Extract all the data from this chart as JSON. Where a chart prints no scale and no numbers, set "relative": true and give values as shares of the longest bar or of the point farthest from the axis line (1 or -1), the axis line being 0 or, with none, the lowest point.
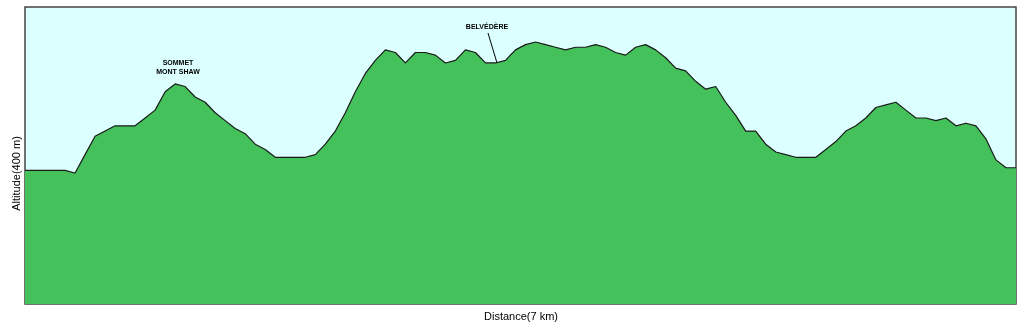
{
  "chart_data": {
    "type": "area",
    "relative": true,
    "xlabel": "Distance(7 km)",
    "ylabel": "Altitude(400 m)",
    "categories": [
      null,
      null,
      null,
      null,
      null,
      null,
      null,
      null,
      null,
      null,
      null,
      null,
      null,
      null,
      null,
      null,
      null,
      null,
      null,
      null,
      null,
      null,
      null,
      null,
      null,
      null,
      null,
      null,
      null,
      null,
      null,
      null,
      null,
      null,
      null,
      null,
      null,
      null,
      null,
      null,
      null,
      null,
      null,
      null,
      null,
      null,
      null,
      null,
      null,
      null,
      null,
      null,
      null,
      null,
      null,
      null,
      null,
      null,
      null,
      null,
      null,
      null,
      null,
      null,
      null,
      null,
      null,
      null,
      null,
      null,
      null,
      null,
      null,
      null,
      null,
      null,
      null,
      null,
      null,
      null,
      null,
      null,
      null,
      null,
      null,
      null,
      null,
      null,
      null,
      null,
      null,
      null,
      null,
      null,
      null,
      null,
      null,
      null,
      null,
      null
    ],
    "series": [
      {
        "color": "#44c15a",
        "values": [
          0.51,
          0.51,
          0.51,
          0.51,
          0.51,
          0.5,
          0.57,
          0.64,
          0.66,
          0.68,
          0.68,
          0.68,
          0.71,
          0.74,
          0.81,
          0.84,
          0.83,
          0.79,
          0.77,
          0.73,
          0.7,
          0.67,
          0.65,
          0.61,
          0.59,
          0.56,
          0.56,
          0.56,
          0.56,
          0.57,
          0.61,
          0.66,
          0.73,
          0.81,
          0.88,
          0.93,
          0.97,
          0.96,
          0.92,
          0.96,
          0.96,
          0.95,
          0.92,
          0.93,
          0.97,
          0.96,
          0.92,
          0.92,
          0.93,
          0.97,
          0.99,
          1.0,
          0.99,
          0.98,
          0.97,
          0.98,
          0.98,
          0.99,
          0.98,
          0.96,
          0.95,
          0.98,
          0.99,
          0.97,
          0.94,
          0.9,
          0.89,
          0.85,
          0.82,
          0.83,
          0.77,
          0.72,
          0.66,
          0.66,
          0.61,
          0.58,
          0.57,
          0.56,
          0.56,
          0.56,
          0.59,
          0.62,
          0.66,
          0.68,
          0.71,
          0.75,
          0.76,
          0.77,
          0.74,
          0.71,
          0.71,
          0.7,
          0.71,
          0.68,
          0.69,
          0.68,
          0.63,
          0.55,
          0.52,
          0.52
        ]
      }
    ],
    "annotations": [
      "SOMMET\nMONT SHAW",
      "BELVÉDÈRE"
    ]
  }
}
